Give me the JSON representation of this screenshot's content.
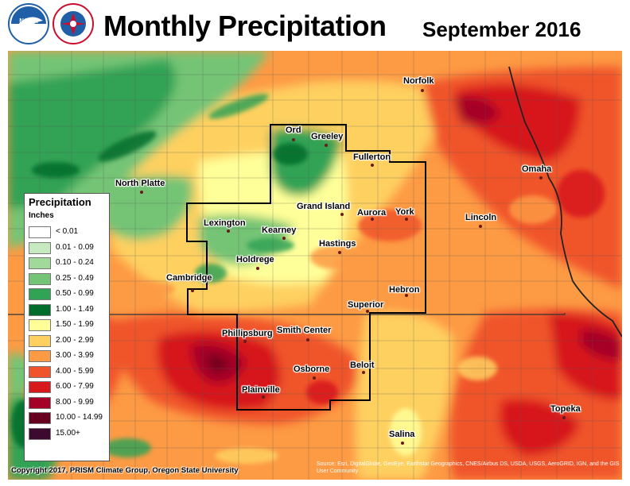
{
  "header": {
    "title": "Monthly Precipitation",
    "subtitle": "September 2016",
    "logos": [
      {
        "name": "noaa-logo",
        "text": "NOAA"
      },
      {
        "name": "nws-logo",
        "text": "NATIONAL WEATHER SERVICE"
      }
    ]
  },
  "legend": {
    "title": "Precipitation",
    "units": "Inches",
    "items": [
      {
        "label": "< 0.01",
        "color": "#ffffff"
      },
      {
        "label": "0.01 - 0.09",
        "color": "#c7e9c0"
      },
      {
        "label": "0.10 - 0.24",
        "color": "#a1d99b"
      },
      {
        "label": "0.25 - 0.49",
        "color": "#74c476"
      },
      {
        "label": "0.50 - 0.99",
        "color": "#31a354"
      },
      {
        "label": "1.00 - 1.49",
        "color": "#006d2c"
      },
      {
        "label": "1.50 - 1.99",
        "color": "#ffff99"
      },
      {
        "label": "2.00 - 2.99",
        "color": "#fed060"
      },
      {
        "label": "3.00 - 3.99",
        "color": "#fd9a44"
      },
      {
        "label": "4.00 - 5.99",
        "color": "#f0542c"
      },
      {
        "label": "6.00 - 7.99",
        "color": "#d7191c"
      },
      {
        "label": "8.00 - 9.99",
        "color": "#a50026"
      },
      {
        "label": "10.00 - 14.99",
        "color": "#67001f"
      },
      {
        "label": "15.00+",
        "color": "#3b0a2e"
      }
    ]
  },
  "cities": [
    {
      "name": "Norfolk"
    },
    {
      "name": "Ord"
    },
    {
      "name": "Greeley"
    },
    {
      "name": "Fullerton"
    },
    {
      "name": "Omaha"
    },
    {
      "name": "North Platte"
    },
    {
      "name": "Grand Island"
    },
    {
      "name": "Aurora"
    },
    {
      "name": "York"
    },
    {
      "name": "Lincoln"
    },
    {
      "name": "Lexington"
    },
    {
      "name": "Kearney"
    },
    {
      "name": "Hastings"
    },
    {
      "name": "Holdrege"
    },
    {
      "name": "Cambridge"
    },
    {
      "name": "Hebron"
    },
    {
      "name": "Superior"
    },
    {
      "name": "Phillipsburg"
    },
    {
      "name": "Smith Center"
    },
    {
      "name": "Osborne"
    },
    {
      "name": "Beloit"
    },
    {
      "name": "Plainville"
    },
    {
      "name": "Topeka"
    },
    {
      "name": "Salina"
    }
  ],
  "footer": {
    "copyright": "Copyright 2017, PRISM Climate Group, Oregon State University",
    "source": "Source: Esri, DigitalGlobe, GeoEye, Earthstar Geographics, CNES/Airbus DS, USDA, USGS, AeroGRID, IGN, and the GIS User Community"
  }
}
